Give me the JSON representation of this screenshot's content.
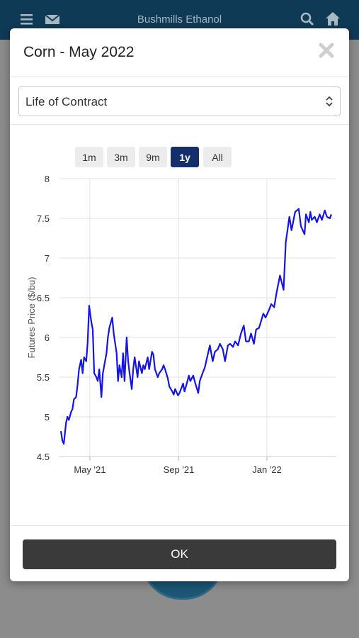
{
  "app": {
    "title": "Bushmills Ethanol"
  },
  "icons": {
    "menu": "menu-icon",
    "mail": "mail-icon",
    "search": "search-icon",
    "home": "home-icon",
    "close": "close-icon",
    "select_arrows": "chevron-updown-icon"
  },
  "modal": {
    "title": "Corn - May 2022",
    "select_value": "Life of Contract",
    "ok_label": "OK"
  },
  "range_buttons": [
    {
      "label": "1m",
      "active": false
    },
    {
      "label": "3m",
      "active": false
    },
    {
      "label": "9m",
      "active": false
    },
    {
      "label": "1y",
      "active": true
    },
    {
      "label": "All",
      "active": false
    }
  ],
  "colors": {
    "line": "#1414e6",
    "active_button": "#142e6e",
    "appbar": "#0f3a56"
  },
  "chart_data": {
    "type": "line",
    "title": "",
    "xlabel": "",
    "ylabel": "Futures Price ($/bu)",
    "ylim": [
      4.5,
      8
    ],
    "yticks": [
      "4.5",
      "5",
      "5.5",
      "6",
      "6.5",
      "7",
      "7.5",
      "8"
    ],
    "xticks": [
      {
        "date": "2021-05-01",
        "label": "May '21"
      },
      {
        "date": "2021-09-01",
        "label": "Sep '21"
      },
      {
        "date": "2022-01-01",
        "label": "Jan '22"
      }
    ],
    "grid": true,
    "series": [
      {
        "x": [
          "2021-03-22",
          "2021-03-24",
          "2021-03-26",
          "2021-03-29",
          "2021-03-31",
          "2021-04-02",
          "2021-04-05",
          "2021-04-07",
          "2021-04-09",
          "2021-04-12",
          "2021-04-14",
          "2021-04-16",
          "2021-04-19",
          "2021-04-21",
          "2021-04-23",
          "2021-04-26",
          "2021-04-28",
          "2021-04-30",
          "2021-05-03",
          "2021-05-05",
          "2021-05-07",
          "2021-05-10",
          "2021-05-12",
          "2021-05-14",
          "2021-05-17",
          "2021-05-19",
          "2021-05-21",
          "2021-05-24",
          "2021-05-26",
          "2021-05-28",
          "2021-06-01",
          "2021-06-03",
          "2021-06-07",
          "2021-06-09",
          "2021-06-11",
          "2021-06-14",
          "2021-06-16",
          "2021-06-18",
          "2021-06-21",
          "2021-06-23",
          "2021-06-25",
          "2021-06-28",
          "2021-06-30",
          "2021-07-02",
          "2021-07-06",
          "2021-07-08",
          "2021-07-12",
          "2021-07-14",
          "2021-07-16",
          "2021-07-20",
          "2021-07-22",
          "2021-07-26",
          "2021-07-28",
          "2021-07-30",
          "2021-08-03",
          "2021-08-05",
          "2021-08-09",
          "2021-08-11",
          "2021-08-13",
          "2021-08-17",
          "2021-08-19",
          "2021-08-23",
          "2021-08-25",
          "2021-08-27",
          "2021-08-31",
          "2021-09-02",
          "2021-09-07",
          "2021-09-09",
          "2021-09-13",
          "2021-09-15",
          "2021-09-17",
          "2021-09-21",
          "2021-09-24",
          "2021-09-28",
          "2021-09-30",
          "2021-10-04",
          "2021-10-07",
          "2021-10-11",
          "2021-10-14",
          "2021-10-18",
          "2021-10-21",
          "2021-10-25",
          "2021-10-28",
          "2021-11-01",
          "2021-11-04",
          "2021-11-08",
          "2021-11-11",
          "2021-11-15",
          "2021-11-18",
          "2021-11-22",
          "2021-11-26",
          "2021-11-30",
          "2021-12-03",
          "2021-12-07",
          "2021-12-10",
          "2021-12-14",
          "2021-12-17",
          "2021-12-21",
          "2021-12-27",
          "2021-12-30",
          "2022-01-04",
          "2022-01-07",
          "2022-01-11",
          "2022-01-14",
          "2022-01-19",
          "2022-01-24",
          "2022-01-27",
          "2022-02-01",
          "2022-02-04",
          "2022-02-09",
          "2022-02-14",
          "2022-02-17",
          "2022-02-22",
          "2022-02-24",
          "2022-02-28",
          "2022-03-02",
          "2022-03-04",
          "2022-03-08",
          "2022-03-11",
          "2022-03-15",
          "2022-03-18",
          "2022-03-22",
          "2022-03-25",
          "2022-03-29",
          "2022-03-31"
        ],
        "y": [
          4.82,
          4.7,
          4.66,
          4.92,
          5.0,
          4.96,
          5.06,
          5.1,
          5.22,
          5.25,
          5.4,
          5.6,
          5.72,
          5.55,
          5.75,
          5.7,
          5.94,
          6.4,
          6.2,
          6.1,
          5.55,
          5.5,
          5.45,
          5.6,
          5.25,
          5.55,
          5.65,
          5.8,
          6.0,
          6.12,
          6.25,
          6.05,
          5.8,
          5.45,
          5.65,
          5.5,
          5.8,
          5.45,
          6.0,
          5.7,
          5.55,
          5.35,
          5.6,
          5.75,
          5.5,
          5.7,
          5.55,
          5.65,
          5.6,
          5.75,
          5.6,
          5.82,
          5.78,
          5.6,
          5.5,
          5.55,
          5.6,
          5.65,
          5.6,
          5.48,
          5.38,
          5.32,
          5.28,
          5.35,
          5.27,
          5.3,
          5.42,
          5.32,
          5.45,
          5.52,
          5.45,
          5.52,
          5.42,
          5.3,
          5.45,
          5.55,
          5.62,
          5.78,
          5.9,
          5.7,
          5.82,
          5.85,
          5.92,
          5.85,
          5.7,
          5.9,
          5.92,
          5.88,
          5.95,
          5.9,
          6.05,
          6.15,
          5.95,
          5.95,
          6.05,
          5.92,
          6.1,
          6.12,
          6.3,
          6.25,
          6.35,
          6.42,
          6.38,
          6.55,
          6.78,
          6.6,
          7.2,
          7.52,
          7.35,
          7.58,
          7.62,
          7.4,
          7.3,
          7.55,
          7.45,
          7.58,
          7.48,
          7.52,
          7.45,
          7.55,
          7.48,
          7.6,
          7.52,
          7.5,
          7.55
        ]
      }
    ]
  }
}
